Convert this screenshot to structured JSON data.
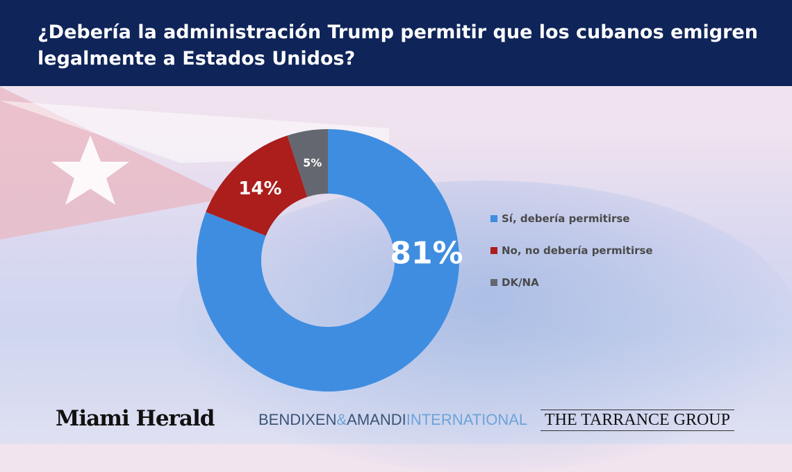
{
  "title": "¿Debería la administración Trump permitir que los cubanos emigren legalmente a Estados Unidos?",
  "chart_data": {
    "type": "pie",
    "donut": true,
    "categories": [
      "Sí, debería permitirse",
      "No, no debería permitirse",
      "DK/NA"
    ],
    "values": [
      81,
      14,
      5
    ],
    "labels": [
      "81%",
      "14%",
      "5%"
    ],
    "colors": [
      "#3f8de0",
      "#ab1e1c",
      "#646770"
    ],
    "legend_placement": "right"
  },
  "logos": {
    "miami_herald": "Miami Herald",
    "bendixen": "BENDIXEN",
    "amp": "&",
    "amandi": "AMANDI",
    "international": "INTERNATIONAL",
    "tarrance": "THE TARRANCE GROUP"
  }
}
